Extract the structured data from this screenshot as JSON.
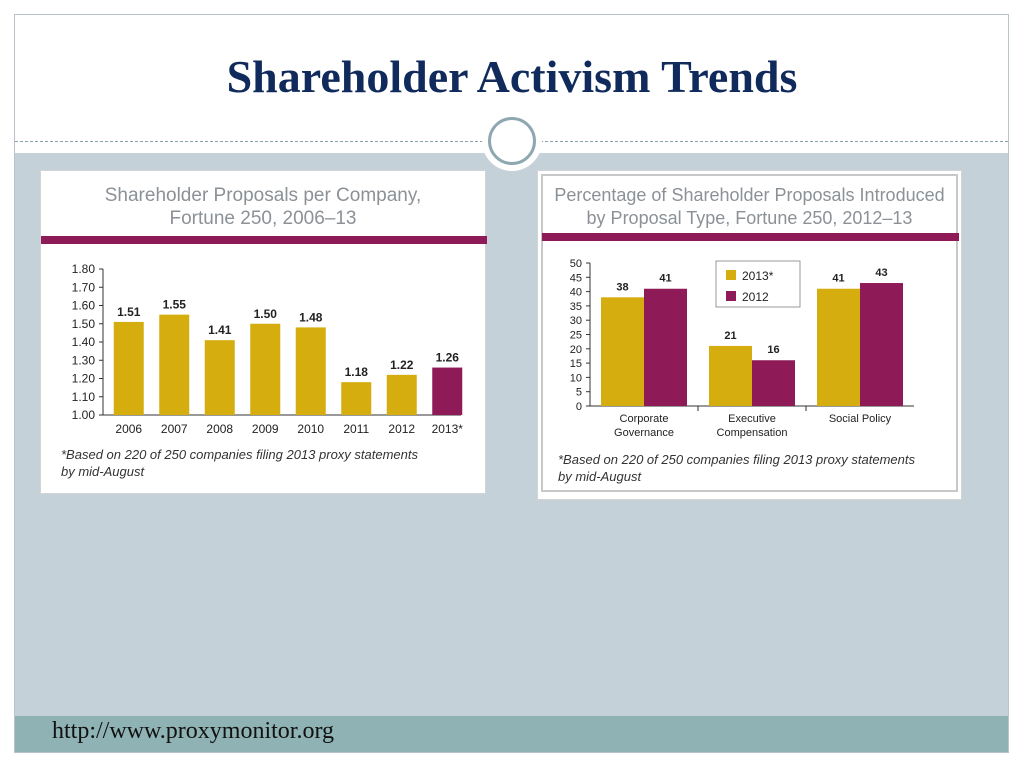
{
  "slide": {
    "title": "Shareholder Activism Trends",
    "footer_url": "http://www.proxymonitor.org"
  },
  "colors": {
    "title": "#102a5c",
    "gold": "#d6ad0e",
    "maroon": "#8e1b57",
    "content_bg": "#c4d1d8",
    "footer_bg": "#8fb2b4"
  },
  "panels": {
    "left": {
      "title_line1": "Shareholder Proposals per Company,",
      "title_line2": "Fortune 250, 2006–13",
      "footnote_line1": "*Based on 220 of 250 companies filing 2013 proxy statements",
      "footnote_line2": "by mid-August"
    },
    "right": {
      "title_line1": "Percentage of Shareholder Proposals Introduced",
      "title_line2": "by Proposal Type, Fortune 250, 2012–13",
      "footnote_line1": "*Based on 220 of 250 companies filing 2013 proxy statements",
      "footnote_line2": "by mid-August"
    }
  },
  "chart_data": [
    {
      "type": "bar",
      "title": "Shareholder Proposals per Company, Fortune 250, 2006–13",
      "categories": [
        "2006",
        "2007",
        "2008",
        "2009",
        "2010",
        "2011",
        "2012",
        "2013*"
      ],
      "values": [
        1.51,
        1.55,
        1.41,
        1.5,
        1.48,
        1.18,
        1.22,
        1.26
      ],
      "data_labels": [
        "1.51",
        "1.55",
        "1.41",
        "1.50",
        "1.48",
        "1.18",
        "1.22",
        "1.26"
      ],
      "bar_colors": [
        "#d6ad0e",
        "#d6ad0e",
        "#d6ad0e",
        "#d6ad0e",
        "#d6ad0e",
        "#d6ad0e",
        "#d6ad0e",
        "#8e1b57"
      ],
      "ylim": [
        1.0,
        1.8
      ],
      "yticks": [
        1.0,
        1.1,
        1.2,
        1.3,
        1.4,
        1.5,
        1.6,
        1.7,
        1.8
      ],
      "ytick_labels": [
        "1.00",
        "1.10",
        "1.20",
        "1.30",
        "1.40",
        "1.50",
        "1.60",
        "1.70",
        "1.80"
      ],
      "grid": false,
      "xlabel": "",
      "ylabel": ""
    },
    {
      "type": "bar",
      "title": "Percentage of Shareholder Proposals Introduced by Proposal Type, Fortune 250, 2012–13",
      "categories": [
        [
          "Corporate",
          "Governance"
        ],
        [
          "Executive",
          "Compensation"
        ],
        [
          "Social Policy"
        ]
      ],
      "series": [
        {
          "name": "2013*",
          "color": "#d6ad0e",
          "values": [
            38,
            21,
            41
          ]
        },
        {
          "name": "2012",
          "color": "#8e1b57",
          "values": [
            41,
            16,
            43
          ]
        }
      ],
      "ylim": [
        0,
        50
      ],
      "yticks": [
        0,
        5,
        10,
        15,
        20,
        25,
        30,
        35,
        40,
        45,
        50
      ],
      "legend": "top-left-center",
      "grid": false,
      "xlabel": "",
      "ylabel": ""
    }
  ]
}
